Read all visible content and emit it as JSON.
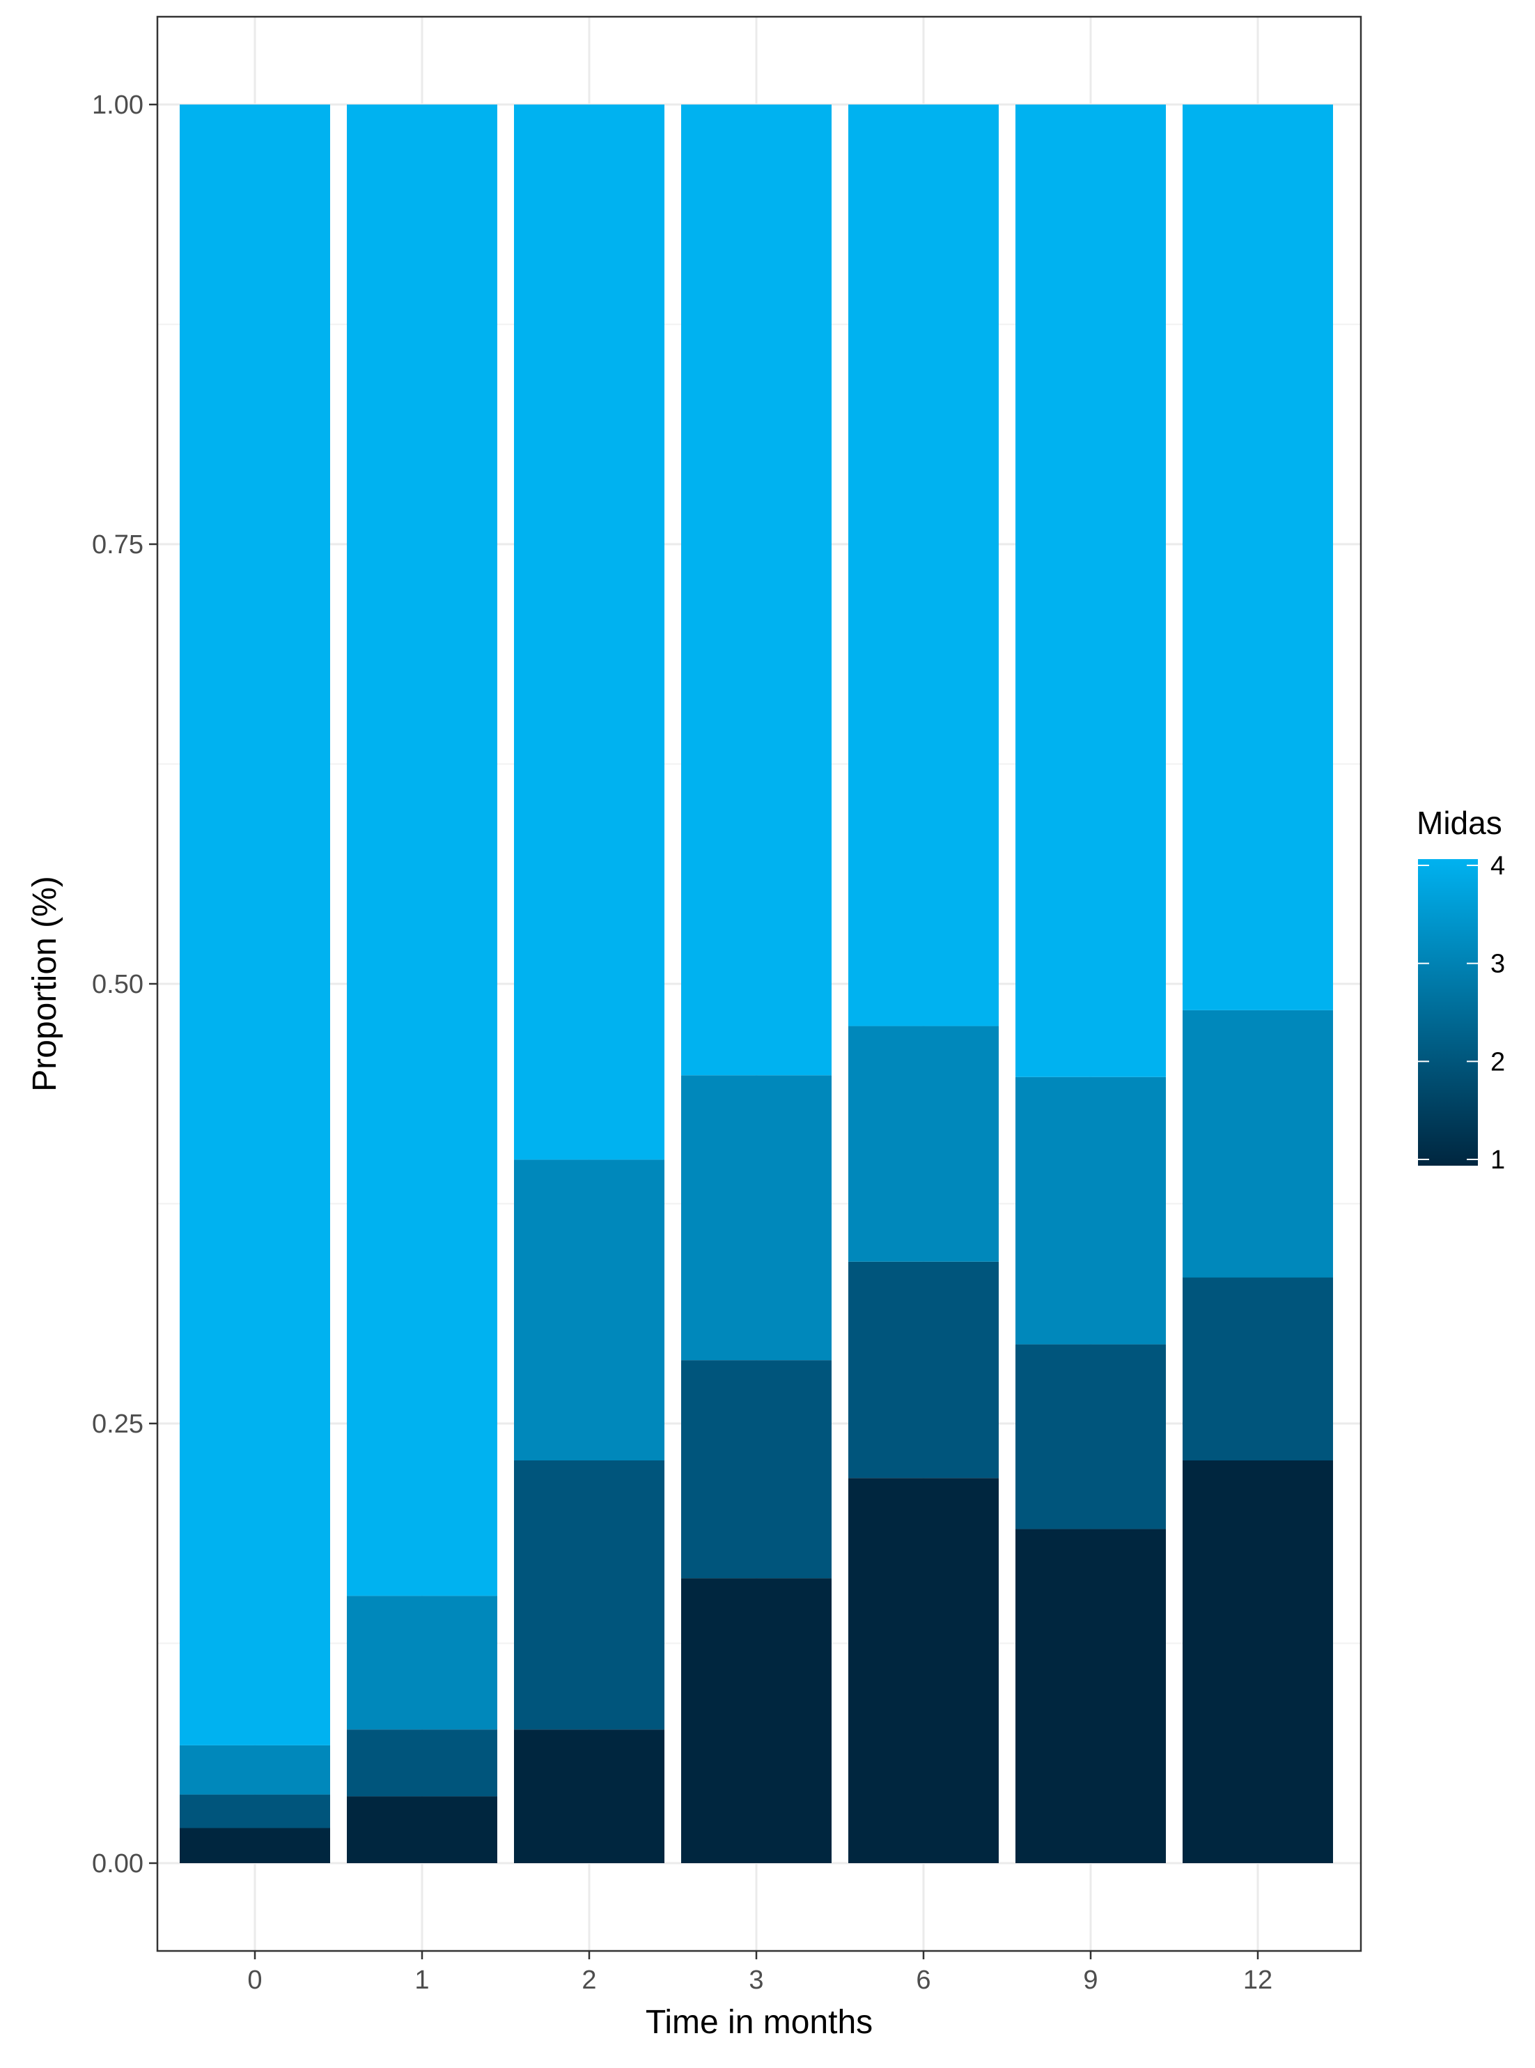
{
  "chart_data": {
    "type": "bar",
    "stacked": true,
    "xlabel": "Time in months",
    "ylabel": "Proportion (%)",
    "ylim": [
      0,
      1
    ],
    "yticks": [
      "0.00",
      "0.25",
      "0.50",
      "0.75",
      "1.00"
    ],
    "categories": [
      "0",
      "1",
      "2",
      "3",
      "6",
      "9",
      "12"
    ],
    "series": [
      {
        "name": "1",
        "color": "#00263f",
        "values": [
          0.02,
          0.038,
          0.076,
          0.162,
          0.219,
          0.19,
          0.229
        ]
      },
      {
        "name": "2",
        "color": "#00557c",
        "values": [
          0.019,
          0.038,
          0.153,
          0.124,
          0.123,
          0.105,
          0.104
        ]
      },
      {
        "name": "3",
        "color": "#0088bb",
        "values": [
          0.028,
          0.076,
          0.171,
          0.162,
          0.134,
          0.152,
          0.152
        ]
      },
      {
        "name": "4",
        "color": "#00b2f0",
        "values": [
          0.933,
          0.848,
          0.6,
          0.552,
          0.524,
          0.553,
          0.515
        ]
      }
    ],
    "legend": {
      "title": "Midas",
      "labels": [
        "4",
        "3",
        "2",
        "1"
      ],
      "placement": "right",
      "gradient_low": "#00263f",
      "gradient_high": "#00b2f0"
    },
    "grid": true
  }
}
